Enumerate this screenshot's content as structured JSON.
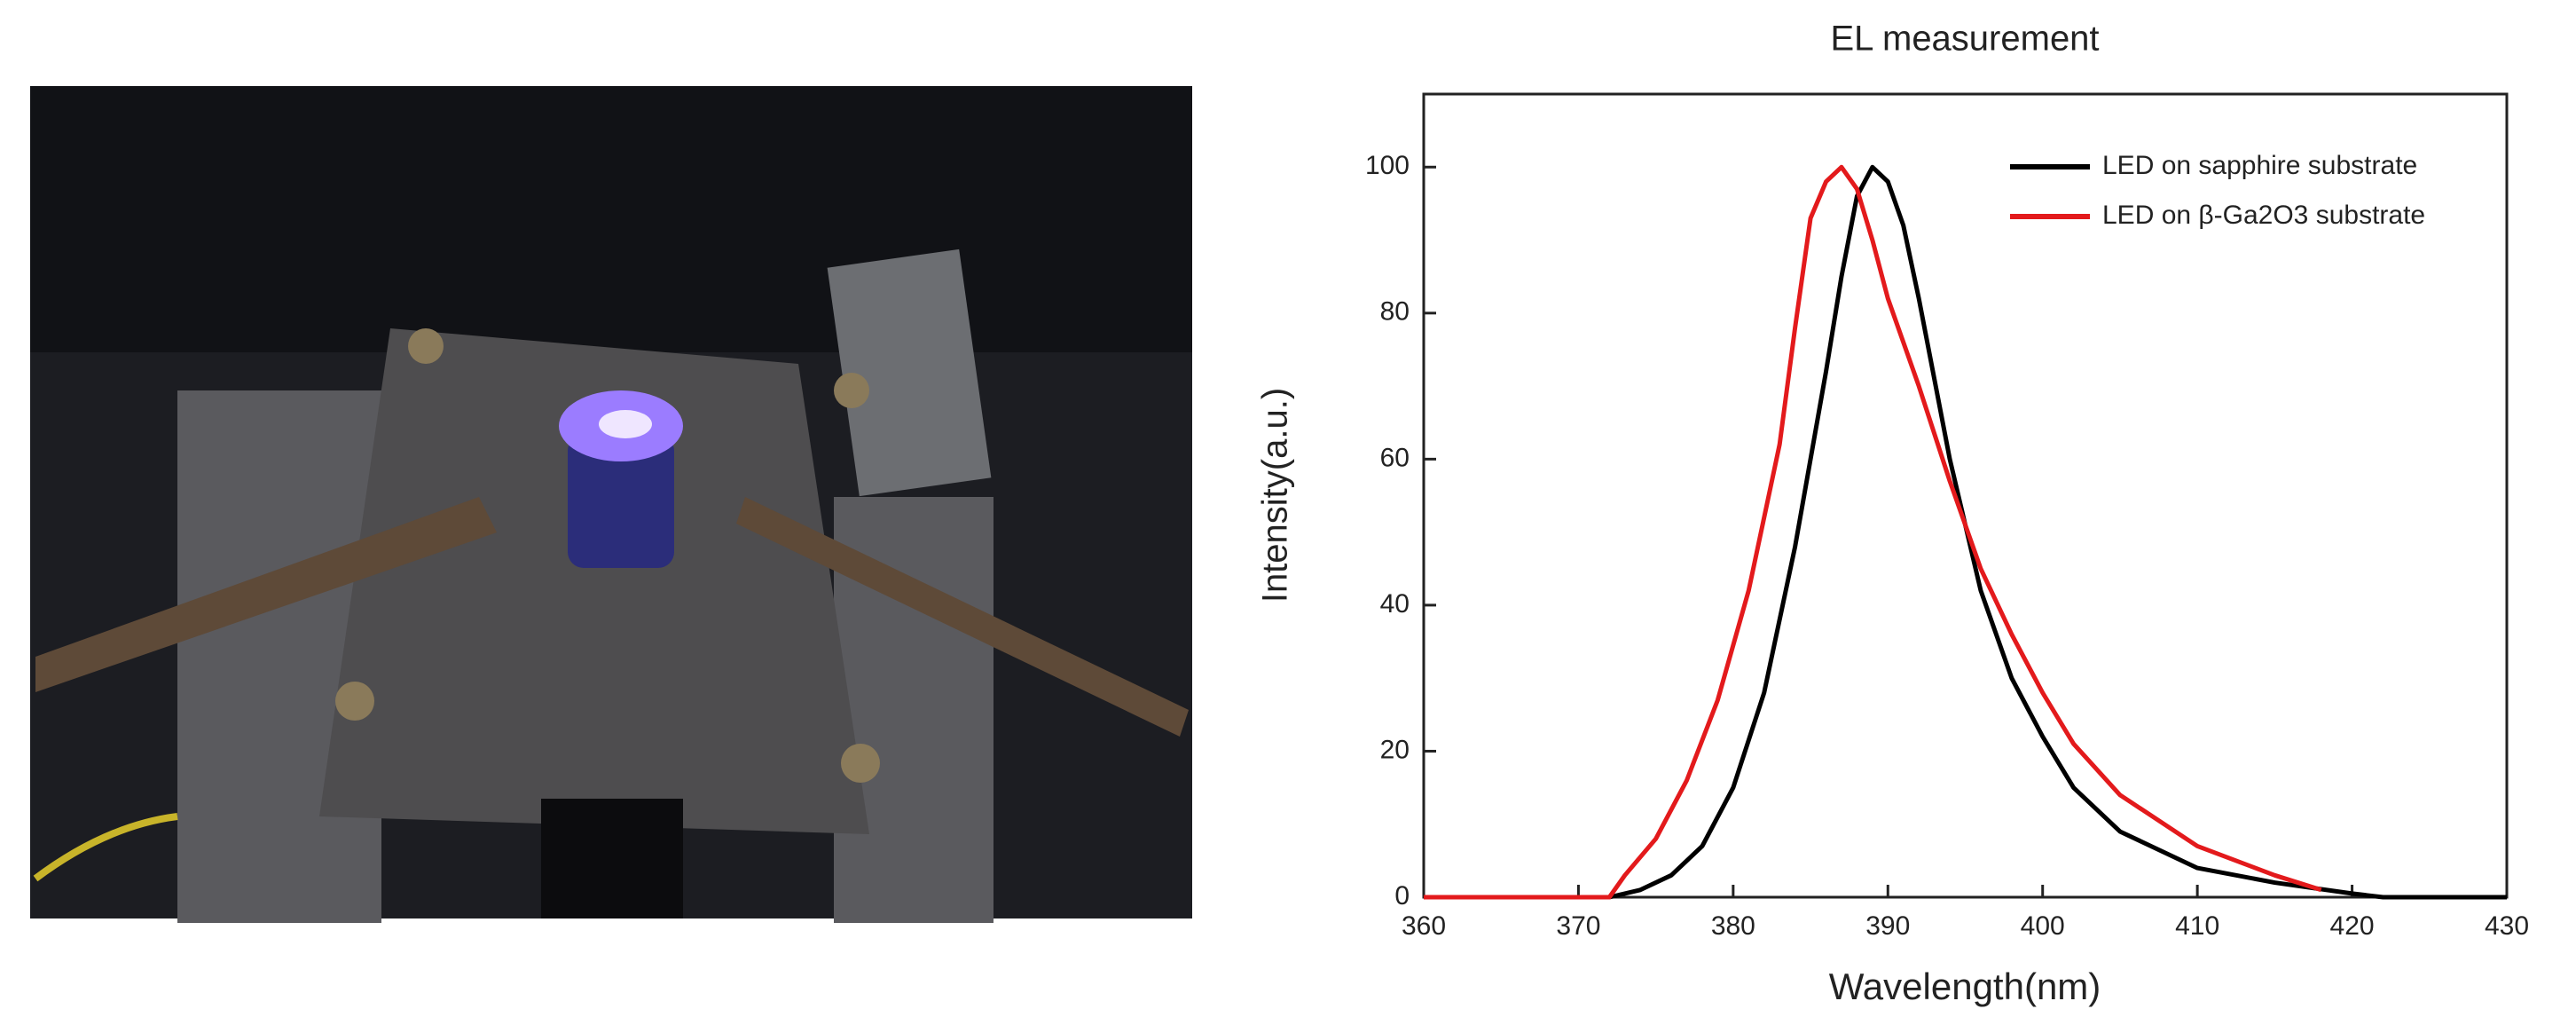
{
  "chart_data": {
    "type": "line",
    "title": "EL measurement",
    "x_label": "Wavelength(nm)",
    "y_label": "Intensity(a.u.)",
    "xlim": [
      360,
      430
    ],
    "xticks": [
      360,
      370,
      380,
      390,
      400,
      410,
      420,
      430
    ],
    "ylim": [
      0,
      110
    ],
    "yticks": [
      0,
      20,
      40,
      60,
      80,
      100
    ],
    "legend": "upper right",
    "series": [
      {
        "name": "LED on sapphire substrate",
        "color": "#000000",
        "x": [
          360,
          372,
          374,
          376,
          378,
          380,
          382,
          384,
          386,
          387,
          388,
          389,
          390,
          391,
          392,
          394,
          396,
          398,
          400,
          402,
          405,
          410,
          415,
          420,
          422,
          430
        ],
        "values": [
          0,
          0,
          1,
          3,
          7,
          15,
          28,
          48,
          72,
          85,
          96,
          100,
          98,
          92,
          82,
          60,
          42,
          30,
          22,
          15,
          9,
          4,
          2,
          0.5,
          0,
          0
        ]
      },
      {
        "name": "LED on β-Ga2O3 substrate",
        "color": "#e31a1c",
        "x": [
          360,
          372,
          373,
          375,
          377,
          379,
          381,
          383,
          384,
          385,
          386,
          387,
          388,
          389,
          390,
          392,
          394,
          396,
          398,
          400,
          402,
          405,
          410,
          415,
          418
        ],
        "values": [
          0,
          0,
          3,
          8,
          16,
          27,
          42,
          62,
          78,
          93,
          98,
          100,
          97,
          90,
          82,
          70,
          57,
          45,
          36,
          28,
          21,
          14,
          7,
          3,
          1
        ]
      }
    ]
  }
}
